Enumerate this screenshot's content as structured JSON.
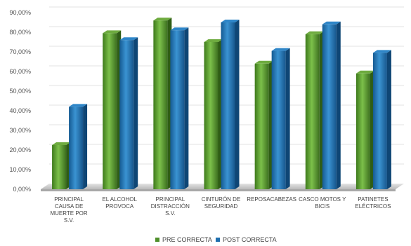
{
  "chart_data": {
    "type": "bar",
    "title": "",
    "xlabel": "",
    "ylabel": "",
    "ylim": [
      0,
      90
    ],
    "y_tick_step": 10,
    "y_tick_format": "percent_2dp_comma",
    "grid": true,
    "legend": "bottom",
    "categories": [
      [
        "PRINCIPAL",
        "CAUSA DE",
        "MUERTE POR",
        "S.V."
      ],
      [
        "EL ALCOHOL",
        "PROVOCA"
      ],
      [
        "PRINCIPAL",
        "DISTRACCIÓN",
        "S.V."
      ],
      [
        "CINTURÓN DE",
        "SEGURIDAD"
      ],
      [
        "REPOSACABEZAS"
      ],
      [
        "CASCO MOTOS Y",
        "BICIS"
      ],
      [
        "PATINETES",
        "ELÉCTRICOS"
      ]
    ],
    "series": [
      {
        "name": "PRE CORRECTA",
        "color": "#4f8f2a",
        "values": [
          22.5,
          79.5,
          86,
          75,
          64,
          79,
          59
        ]
      },
      {
        "name": "POST CORRECTA",
        "color": "#1f6fae",
        "values": [
          42,
          76,
          81,
          85,
          70.5,
          84,
          69.5
        ]
      }
    ]
  }
}
